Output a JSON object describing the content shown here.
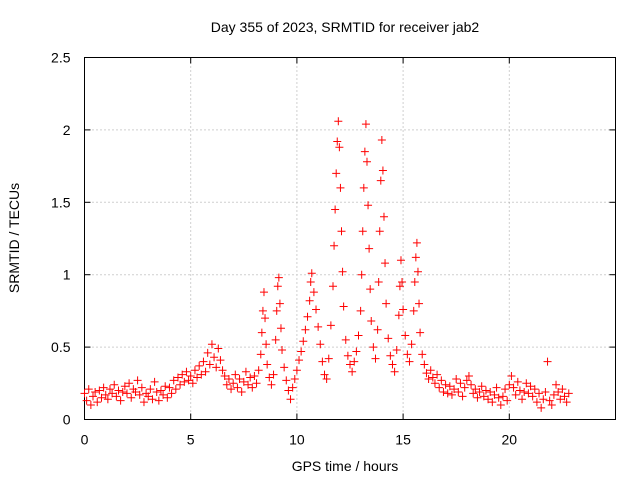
{
  "chart_data": {
    "type": "scatter",
    "title": "Day 355 of 2023, SRMTID for receiver jab2",
    "xlabel": "GPS time / hours",
    "ylabel": "SRMTID / TECUs",
    "xlim": [
      0,
      25
    ],
    "ylim": [
      0,
      2.5
    ],
    "xticks": [
      0,
      5,
      10,
      15,
      20
    ],
    "xtick_labels": [
      "0",
      "5",
      "10",
      "15",
      "20"
    ],
    "yticks": [
      0,
      0.5,
      1,
      1.5,
      2,
      2.5
    ],
    "ytick_labels": [
      "0",
      "0.5",
      "1",
      "1.5",
      "2",
      "2.5"
    ],
    "grid": true,
    "marker": "+",
    "color": "#ff0000",
    "series": [
      {
        "name": "SRMTID",
        "points": [
          [
            0.0,
            0.18
          ],
          [
            0.1,
            0.13
          ],
          [
            0.2,
            0.21
          ],
          [
            0.3,
            0.1
          ],
          [
            0.4,
            0.16
          ],
          [
            0.5,
            0.19
          ],
          [
            0.6,
            0.12
          ],
          [
            0.7,
            0.2
          ],
          [
            0.8,
            0.15
          ],
          [
            0.9,
            0.22
          ],
          [
            1.0,
            0.17
          ],
          [
            1.1,
            0.14
          ],
          [
            1.2,
            0.21
          ],
          [
            1.3,
            0.18
          ],
          [
            1.4,
            0.24
          ],
          [
            1.5,
            0.16
          ],
          [
            1.6,
            0.2
          ],
          [
            1.7,
            0.13
          ],
          [
            1.8,
            0.19
          ],
          [
            1.9,
            0.23
          ],
          [
            2.0,
            0.18
          ],
          [
            2.1,
            0.25
          ],
          [
            2.2,
            0.15
          ],
          [
            2.3,
            0.21
          ],
          [
            2.4,
            0.19
          ],
          [
            2.5,
            0.27
          ],
          [
            2.6,
            0.17
          ],
          [
            2.7,
            0.22
          ],
          [
            2.8,
            0.12
          ],
          [
            2.9,
            0.18
          ],
          [
            3.0,
            0.16
          ],
          [
            3.1,
            0.21
          ],
          [
            3.2,
            0.14
          ],
          [
            3.3,
            0.26
          ],
          [
            3.4,
            0.19
          ],
          [
            3.5,
            0.13
          ],
          [
            3.6,
            0.2
          ],
          [
            3.7,
            0.17
          ],
          [
            3.8,
            0.23
          ],
          [
            3.9,
            0.15
          ],
          [
            4.0,
            0.22
          ],
          [
            4.1,
            0.18
          ],
          [
            4.2,
            0.27
          ],
          [
            4.3,
            0.21
          ],
          [
            4.4,
            0.29
          ],
          [
            4.5,
            0.24
          ],
          [
            4.6,
            0.31
          ],
          [
            4.7,
            0.26
          ],
          [
            4.8,
            0.33
          ],
          [
            4.9,
            0.27
          ],
          [
            5.0,
            0.3
          ],
          [
            5.1,
            0.25
          ],
          [
            5.2,
            0.34
          ],
          [
            5.3,
            0.29
          ],
          [
            5.4,
            0.37
          ],
          [
            5.5,
            0.31
          ],
          [
            5.6,
            0.4
          ],
          [
            5.7,
            0.33
          ],
          [
            5.8,
            0.46
          ],
          [
            5.9,
            0.38
          ],
          [
            6.0,
            0.52
          ],
          [
            6.1,
            0.43
          ],
          [
            6.2,
            0.36
          ],
          [
            6.3,
            0.49
          ],
          [
            6.4,
            0.41
          ],
          [
            6.5,
            0.34
          ],
          [
            6.6,
            0.3
          ],
          [
            6.7,
            0.24
          ],
          [
            6.8,
            0.28
          ],
          [
            6.9,
            0.21
          ],
          [
            7.0,
            0.25
          ],
          [
            7.1,
            0.31
          ],
          [
            7.2,
            0.22
          ],
          [
            7.3,
            0.28
          ],
          [
            7.4,
            0.19
          ],
          [
            7.5,
            0.26
          ],
          [
            7.6,
            0.33
          ],
          [
            7.7,
            0.24
          ],
          [
            7.8,
            0.29
          ],
          [
            7.9,
            0.22
          ],
          [
            8.0,
            0.3
          ],
          [
            8.1,
            0.25
          ],
          [
            8.2,
            0.34
          ],
          [
            8.3,
            0.45
          ],
          [
            8.35,
            0.6
          ],
          [
            8.4,
            0.75
          ],
          [
            8.45,
            0.88
          ],
          [
            8.5,
            0.7
          ],
          [
            8.55,
            0.52
          ],
          [
            8.6,
            0.38
          ],
          [
            8.7,
            0.29
          ],
          [
            8.8,
            0.24
          ],
          [
            8.9,
            0.31
          ],
          [
            9.0,
            0.55
          ],
          [
            9.05,
            0.75
          ],
          [
            9.1,
            0.92
          ],
          [
            9.15,
            0.98
          ],
          [
            9.2,
            0.8
          ],
          [
            9.25,
            0.63
          ],
          [
            9.3,
            0.48
          ],
          [
            9.4,
            0.36
          ],
          [
            9.5,
            0.27
          ],
          [
            9.6,
            0.2
          ],
          [
            9.7,
            0.14
          ],
          [
            9.8,
            0.22
          ],
          [
            9.9,
            0.28
          ],
          [
            10.0,
            0.34
          ],
          [
            10.1,
            0.41
          ],
          [
            10.2,
            0.47
          ],
          [
            10.3,
            0.54
          ],
          [
            10.4,
            0.62
          ],
          [
            10.5,
            0.71
          ],
          [
            10.6,
            0.82
          ],
          [
            10.65,
            0.95
          ],
          [
            10.7,
            1.01
          ],
          [
            10.8,
            0.88
          ],
          [
            10.9,
            0.76
          ],
          [
            11.0,
            0.64
          ],
          [
            11.1,
            0.52
          ],
          [
            11.2,
            0.4
          ],
          [
            11.3,
            0.31
          ],
          [
            11.4,
            0.28
          ],
          [
            11.5,
            0.42
          ],
          [
            11.6,
            0.65
          ],
          [
            11.7,
            0.92
          ],
          [
            11.75,
            1.2
          ],
          [
            11.8,
            1.45
          ],
          [
            11.85,
            1.7
          ],
          [
            11.9,
            1.92
          ],
          [
            11.95,
            2.06
          ],
          [
            12.0,
            1.88
          ],
          [
            12.05,
            1.6
          ],
          [
            12.1,
            1.3
          ],
          [
            12.15,
            1.02
          ],
          [
            12.2,
            0.78
          ],
          [
            12.3,
            0.55
          ],
          [
            12.4,
            0.44
          ],
          [
            12.5,
            0.38
          ],
          [
            12.6,
            0.33
          ],
          [
            12.7,
            0.4
          ],
          [
            12.8,
            0.47
          ],
          [
            12.9,
            0.58
          ],
          [
            13.0,
            0.75
          ],
          [
            13.05,
            1.0
          ],
          [
            13.1,
            1.3
          ],
          [
            13.15,
            1.6
          ],
          [
            13.2,
            1.85
          ],
          [
            13.25,
            2.04
          ],
          [
            13.3,
            1.78
          ],
          [
            13.35,
            1.48
          ],
          [
            13.4,
            1.18
          ],
          [
            13.45,
            0.9
          ],
          [
            13.5,
            0.68
          ],
          [
            13.6,
            0.5
          ],
          [
            13.7,
            0.42
          ],
          [
            13.8,
            0.62
          ],
          [
            13.85,
            0.95
          ],
          [
            13.9,
            1.3
          ],
          [
            13.95,
            1.65
          ],
          [
            14.0,
            1.93
          ],
          [
            14.05,
            1.72
          ],
          [
            14.1,
            1.4
          ],
          [
            14.15,
            1.08
          ],
          [
            14.2,
            0.8
          ],
          [
            14.3,
            0.56
          ],
          [
            14.4,
            0.44
          ],
          [
            14.5,
            0.38
          ],
          [
            14.6,
            0.33
          ],
          [
            14.7,
            0.48
          ],
          [
            14.8,
            0.72
          ],
          [
            14.85,
            0.92
          ],
          [
            14.9,
            1.1
          ],
          [
            14.95,
            0.95
          ],
          [
            15.0,
            0.76
          ],
          [
            15.1,
            0.58
          ],
          [
            15.2,
            0.45
          ],
          [
            15.3,
            0.4
          ],
          [
            15.4,
            0.52
          ],
          [
            15.5,
            0.75
          ],
          [
            15.55,
            0.95
          ],
          [
            15.6,
            1.12
          ],
          [
            15.65,
            1.22
          ],
          [
            15.7,
            1.02
          ],
          [
            15.75,
            0.8
          ],
          [
            15.8,
            0.6
          ],
          [
            15.9,
            0.45
          ],
          [
            16.0,
            0.38
          ],
          [
            16.1,
            0.32
          ],
          [
            16.2,
            0.28
          ],
          [
            16.3,
            0.34
          ],
          [
            16.4,
            0.29
          ],
          [
            16.5,
            0.25
          ],
          [
            16.6,
            0.31
          ],
          [
            16.7,
            0.22
          ],
          [
            16.8,
            0.27
          ],
          [
            16.9,
            0.19
          ],
          [
            17.0,
            0.24
          ],
          [
            17.1,
            0.18
          ],
          [
            17.2,
            0.23
          ],
          [
            17.3,
            0.17
          ],
          [
            17.4,
            0.21
          ],
          [
            17.5,
            0.28
          ],
          [
            17.6,
            0.19
          ],
          [
            17.7,
            0.25
          ],
          [
            17.8,
            0.16
          ],
          [
            17.9,
            0.22
          ],
          [
            18.0,
            0.27
          ],
          [
            18.1,
            0.3
          ],
          [
            18.2,
            0.24
          ],
          [
            18.3,
            0.18
          ],
          [
            18.4,
            0.21
          ],
          [
            18.5,
            0.15
          ],
          [
            18.6,
            0.19
          ],
          [
            18.7,
            0.23
          ],
          [
            18.8,
            0.16
          ],
          [
            18.9,
            0.2
          ],
          [
            19.0,
            0.14
          ],
          [
            19.1,
            0.19
          ],
          [
            19.2,
            0.12
          ],
          [
            19.3,
            0.17
          ],
          [
            19.4,
            0.22
          ],
          [
            19.5,
            0.15
          ],
          [
            19.6,
            0.1
          ],
          [
            19.7,
            0.16
          ],
          [
            19.8,
            0.21
          ],
          [
            19.9,
            0.13
          ],
          [
            20.0,
            0.24
          ],
          [
            20.1,
            0.3
          ],
          [
            20.2,
            0.22
          ],
          [
            20.3,
            0.17
          ],
          [
            20.4,
            0.26
          ],
          [
            20.5,
            0.2
          ],
          [
            20.6,
            0.14
          ],
          [
            20.7,
            0.19
          ],
          [
            20.8,
            0.25
          ],
          [
            20.9,
            0.18
          ],
          [
            21.0,
            0.23
          ],
          [
            21.1,
            0.16
          ],
          [
            21.2,
            0.21
          ],
          [
            21.3,
            0.12
          ],
          [
            21.4,
            0.18
          ],
          [
            21.5,
            0.08
          ],
          [
            21.6,
            0.14
          ],
          [
            21.7,
            0.19
          ],
          [
            21.8,
            0.4
          ],
          [
            21.9,
            0.13
          ],
          [
            22.0,
            0.1
          ],
          [
            22.1,
            0.17
          ],
          [
            22.2,
            0.24
          ],
          [
            22.3,
            0.19
          ],
          [
            22.4,
            0.14
          ],
          [
            22.5,
            0.21
          ],
          [
            22.6,
            0.16
          ],
          [
            22.7,
            0.12
          ],
          [
            22.8,
            0.18
          ]
        ]
      }
    ]
  }
}
